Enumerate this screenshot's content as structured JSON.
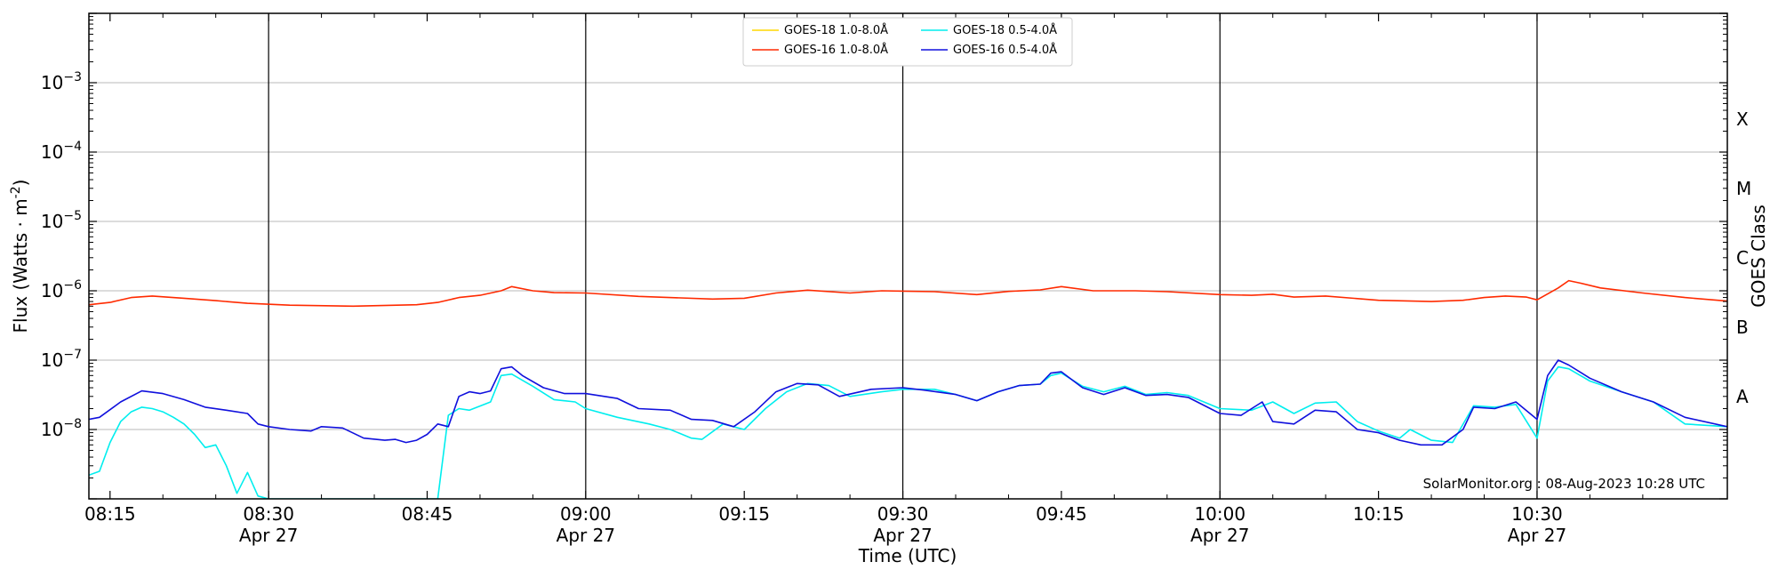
{
  "chart_data": {
    "type": "line",
    "ylabel": "Flux (Watts · m",
    "ylabel_sup": "-2",
    "ylabel_end": ")",
    "xlabel": "Time (UTC)",
    "right_label": "GOES Class",
    "credit": "SolarMonitor.org : 08-Aug-2023 10:28 UTC",
    "y_scale": "log",
    "ylim": [
      1e-09,
      0.01
    ],
    "xlim": [
      "08:13",
      "10:48"
    ],
    "grid": "horizontal",
    "legend_position": "top-center",
    "y_ticks": [
      {
        "value": 1e-08,
        "base": "10",
        "exp": "−8"
      },
      {
        "value": 1e-07,
        "base": "10",
        "exp": "−7"
      },
      {
        "value": 1e-06,
        "base": "10",
        "exp": "−6"
      },
      {
        "value": 1e-05,
        "base": "10",
        "exp": "−5"
      },
      {
        "value": 0.0001,
        "base": "10",
        "exp": "−4"
      },
      {
        "value": 0.001,
        "base": "10",
        "exp": "−3"
      }
    ],
    "x_ticks": [
      {
        "time": "08:15",
        "label": "08:15",
        "sub": ""
      },
      {
        "time": "08:30",
        "label": "08:30",
        "sub": "Apr 27"
      },
      {
        "time": "08:45",
        "label": "08:45",
        "sub": ""
      },
      {
        "time": "09:00",
        "label": "09:00",
        "sub": "Apr 27"
      },
      {
        "time": "09:15",
        "label": "09:15",
        "sub": ""
      },
      {
        "time": "09:30",
        "label": "09:30",
        "sub": "Apr 27"
      },
      {
        "time": "09:45",
        "label": "09:45",
        "sub": ""
      },
      {
        "time": "10:00",
        "label": "10:00",
        "sub": "Apr 27"
      },
      {
        "time": "10:15",
        "label": "10:15",
        "sub": ""
      },
      {
        "time": "10:30",
        "label": "10:30",
        "sub": "Apr 27"
      }
    ],
    "goes_classes": [
      {
        "label": "X",
        "value": 0.0003
      },
      {
        "label": "M",
        "value": 3e-05
      },
      {
        "label": "C",
        "value": 3e-06
      },
      {
        "label": "B",
        "value": 3e-07
      },
      {
        "label": "A",
        "value": 3e-08
      }
    ],
    "series": [
      {
        "name": "GOES-18 1.0-8.0Å",
        "color": "#ffd700",
        "points": []
      },
      {
        "name": "GOES-16 1.0-8.0Å",
        "color": "#ff2a00",
        "points": [
          [
            "08:13",
            6.3e-07
          ],
          [
            "08:15",
            6.8e-07
          ],
          [
            "08:17",
            8e-07
          ],
          [
            "08:19",
            8.4e-07
          ],
          [
            "08:22",
            7.8e-07
          ],
          [
            "08:25",
            7.2e-07
          ],
          [
            "08:28",
            6.6e-07
          ],
          [
            "08:32",
            6.2e-07
          ],
          [
            "08:38",
            6e-07
          ],
          [
            "08:44",
            6.3e-07
          ],
          [
            "08:46",
            6.8e-07
          ],
          [
            "08:48",
            8e-07
          ],
          [
            "08:50",
            8.6e-07
          ],
          [
            "08:52",
            1e-06
          ],
          [
            "08:53",
            1.15e-06
          ],
          [
            "08:55",
            1e-06
          ],
          [
            "08:57",
            9.4e-07
          ],
          [
            "09:00",
            9.3e-07
          ],
          [
            "09:05",
            8.3e-07
          ],
          [
            "09:12",
            7.6e-07
          ],
          [
            "09:15",
            7.8e-07
          ],
          [
            "09:18",
            9.3e-07
          ],
          [
            "09:21",
            1.02e-06
          ],
          [
            "09:25",
            9.3e-07
          ],
          [
            "09:28",
            1e-06
          ],
          [
            "09:33",
            9.7e-07
          ],
          [
            "09:37",
            8.8e-07
          ],
          [
            "09:40",
            9.8e-07
          ],
          [
            "09:43",
            1.03e-06
          ],
          [
            "09:45",
            1.15e-06
          ],
          [
            "09:48",
            1e-06
          ],
          [
            "09:52",
            1e-06
          ],
          [
            "09:55",
            9.7e-07
          ],
          [
            "10:00",
            8.8e-07
          ],
          [
            "10:03",
            8.6e-07
          ],
          [
            "10:05",
            8.9e-07
          ],
          [
            "10:07",
            8.1e-07
          ],
          [
            "10:10",
            8.4e-07
          ],
          [
            "10:15",
            7.3e-07
          ],
          [
            "10:20",
            7e-07
          ],
          [
            "10:23",
            7.3e-07
          ],
          [
            "10:25",
            8e-07
          ],
          [
            "10:27",
            8.4e-07
          ],
          [
            "10:29",
            8.1e-07
          ],
          [
            "10:30",
            7.4e-07
          ],
          [
            "10:32",
            1.1e-06
          ],
          [
            "10:33",
            1.4e-06
          ],
          [
            "10:34",
            1.3e-06
          ],
          [
            "10:36",
            1.1e-06
          ],
          [
            "10:40",
            9.3e-07
          ],
          [
            "10:44",
            8e-07
          ],
          [
            "10:48",
            7.1e-07
          ]
        ]
      },
      {
        "name": "GOES-18 0.5-4.0Å",
        "color": "#00eeee",
        "points": [
          [
            "08:13",
            2.2e-09
          ],
          [
            "08:14",
            2.5e-09
          ],
          [
            "08:15",
            6.5e-09
          ],
          [
            "08:16",
            1.3e-08
          ],
          [
            "08:17",
            1.8e-08
          ],
          [
            "08:18",
            2.1e-08
          ],
          [
            "08:19",
            2e-08
          ],
          [
            "08:20",
            1.8e-08
          ],
          [
            "08:21",
            1.5e-08
          ],
          [
            "08:22",
            1.2e-08
          ],
          [
            "08:23",
            8.5e-09
          ],
          [
            "08:24",
            5.5e-09
          ],
          [
            "08:25",
            6e-09
          ],
          [
            "08:26",
            3e-09
          ],
          [
            "08:27",
            1.2e-09
          ],
          [
            "08:28",
            2.4e-09
          ],
          [
            "08:29",
            1.1e-09
          ],
          [
            "08:30",
            1e-09
          ],
          [
            "08:46",
            1e-09
          ],
          [
            "08:47",
            1.6e-08
          ],
          [
            "08:48",
            2e-08
          ],
          [
            "08:49",
            1.9e-08
          ],
          [
            "08:51",
            2.5e-08
          ],
          [
            "08:52",
            6e-08
          ],
          [
            "08:53",
            6.3e-08
          ],
          [
            "08:55",
            4.2e-08
          ],
          [
            "08:57",
            2.7e-08
          ],
          [
            "08:59",
            2.5e-08
          ],
          [
            "09:00",
            2e-08
          ],
          [
            "09:03",
            1.5e-08
          ],
          [
            "09:06",
            1.2e-08
          ],
          [
            "09:08",
            1e-08
          ],
          [
            "09:10",
            7.5e-09
          ],
          [
            "09:11",
            7.2e-09
          ],
          [
            "09:13",
            1.2e-08
          ],
          [
            "09:15",
            1e-08
          ],
          [
            "09:17",
            2e-08
          ],
          [
            "09:19",
            3.5e-08
          ],
          [
            "09:21",
            4.6e-08
          ],
          [
            "09:23",
            4.3e-08
          ],
          [
            "09:25",
            3e-08
          ],
          [
            "09:28",
            3.5e-08
          ],
          [
            "09:30",
            3.8e-08
          ],
          [
            "09:33",
            3.8e-08
          ],
          [
            "09:35",
            3.2e-08
          ],
          [
            "09:37",
            2.6e-08
          ],
          [
            "09:39",
            3.5e-08
          ],
          [
            "09:41",
            4.3e-08
          ],
          [
            "09:43",
            4.5e-08
          ],
          [
            "09:44",
            6e-08
          ],
          [
            "09:45",
            6.5e-08
          ],
          [
            "09:47",
            4.2e-08
          ],
          [
            "09:49",
            3.5e-08
          ],
          [
            "09:51",
            4.2e-08
          ],
          [
            "09:53",
            3.2e-08
          ],
          [
            "09:55",
            3.4e-08
          ],
          [
            "09:57",
            3.1e-08
          ],
          [
            "10:00",
            2e-08
          ],
          [
            "10:03",
            1.9e-08
          ],
          [
            "10:05",
            2.5e-08
          ],
          [
            "10:07",
            1.7e-08
          ],
          [
            "10:09",
            2.4e-08
          ],
          [
            "10:11",
            2.5e-08
          ],
          [
            "10:13",
            1.3e-08
          ],
          [
            "10:15",
            9.5e-09
          ],
          [
            "10:17",
            7.5e-09
          ],
          [
            "10:18",
            1e-08
          ],
          [
            "10:20",
            7e-09
          ],
          [
            "10:22",
            6.5e-09
          ],
          [
            "10:24",
            2.2e-08
          ],
          [
            "10:26",
            2.1e-08
          ],
          [
            "10:28",
            2.3e-08
          ],
          [
            "10:30",
            7.5e-09
          ],
          [
            "10:31",
            5e-08
          ],
          [
            "10:32",
            8e-08
          ],
          [
            "10:33",
            7.5e-08
          ],
          [
            "10:35",
            5e-08
          ],
          [
            "10:38",
            3.5e-08
          ],
          [
            "10:41",
            2.5e-08
          ],
          [
            "10:44",
            1.2e-08
          ],
          [
            "10:48",
            1.1e-08
          ]
        ]
      },
      {
        "name": "GOES-16 0.5-4.0Å",
        "color": "#1010dd",
        "points": [
          [
            "08:13",
            1.4e-08
          ],
          [
            "08:14",
            1.5e-08
          ],
          [
            "08:16",
            2.5e-08
          ],
          [
            "08:18",
            3.6e-08
          ],
          [
            "08:20",
            3.3e-08
          ],
          [
            "08:22",
            2.7e-08
          ],
          [
            "08:24",
            2.1e-08
          ],
          [
            "08:26",
            1.9e-08
          ],
          [
            "08:28",
            1.7e-08
          ],
          [
            "08:29",
            1.2e-08
          ],
          [
            "08:30",
            1.1e-08
          ],
          [
            "08:32",
            1e-08
          ],
          [
            "08:34",
            9.5e-09
          ],
          [
            "08:35",
            1.1e-08
          ],
          [
            "08:37",
            1.05e-08
          ],
          [
            "08:39",
            7.5e-09
          ],
          [
            "08:41",
            7e-09
          ],
          [
            "08:42",
            7.2e-09
          ],
          [
            "08:43",
            6.5e-09
          ],
          [
            "08:44",
            7e-09
          ],
          [
            "08:45",
            8.5e-09
          ],
          [
            "08:46",
            1.2e-08
          ],
          [
            "08:47",
            1.1e-08
          ],
          [
            "08:48",
            3e-08
          ],
          [
            "08:49",
            3.5e-08
          ],
          [
            "08:50",
            3.3e-08
          ],
          [
            "08:51",
            3.6e-08
          ],
          [
            "08:52",
            7.5e-08
          ],
          [
            "08:53",
            8e-08
          ],
          [
            "08:54",
            6e-08
          ],
          [
            "08:56",
            4e-08
          ],
          [
            "08:58",
            3.3e-08
          ],
          [
            "09:00",
            3.3e-08
          ],
          [
            "09:03",
            2.8e-08
          ],
          [
            "09:05",
            2e-08
          ],
          [
            "09:08",
            1.9e-08
          ],
          [
            "09:10",
            1.4e-08
          ],
          [
            "09:12",
            1.35e-08
          ],
          [
            "09:14",
            1.1e-08
          ],
          [
            "09:16",
            1.8e-08
          ],
          [
            "09:18",
            3.5e-08
          ],
          [
            "09:20",
            4.6e-08
          ],
          [
            "09:22",
            4.4e-08
          ],
          [
            "09:24",
            3e-08
          ],
          [
            "09:27",
            3.8e-08
          ],
          [
            "09:30",
            4e-08
          ],
          [
            "09:32",
            3.7e-08
          ],
          [
            "09:35",
            3.2e-08
          ],
          [
            "09:37",
            2.6e-08
          ],
          [
            "09:39",
            3.5e-08
          ],
          [
            "09:41",
            4.3e-08
          ],
          [
            "09:43",
            4.5e-08
          ],
          [
            "09:44",
            6.5e-08
          ],
          [
            "09:45",
            6.8e-08
          ],
          [
            "09:47",
            4e-08
          ],
          [
            "09:49",
            3.2e-08
          ],
          [
            "09:51",
            4e-08
          ],
          [
            "09:53",
            3.1e-08
          ],
          [
            "09:55",
            3.2e-08
          ],
          [
            "09:57",
            2.9e-08
          ],
          [
            "10:00",
            1.7e-08
          ],
          [
            "10:02",
            1.6e-08
          ],
          [
            "10:04",
            2.5e-08
          ],
          [
            "10:05",
            1.3e-08
          ],
          [
            "10:07",
            1.2e-08
          ],
          [
            "10:09",
            1.9e-08
          ],
          [
            "10:11",
            1.8e-08
          ],
          [
            "10:13",
            1e-08
          ],
          [
            "10:15",
            9e-09
          ],
          [
            "10:17",
            7e-09
          ],
          [
            "10:19",
            6e-09
          ],
          [
            "10:21",
            6e-09
          ],
          [
            "10:23",
            1e-08
          ],
          [
            "10:24",
            2.1e-08
          ],
          [
            "10:26",
            2e-08
          ],
          [
            "10:28",
            2.5e-08
          ],
          [
            "10:30",
            1.4e-08
          ],
          [
            "10:31",
            6e-08
          ],
          [
            "10:32",
            1e-07
          ],
          [
            "10:33",
            8.5e-08
          ],
          [
            "10:35",
            5.5e-08
          ],
          [
            "10:38",
            3.5e-08
          ],
          [
            "10:41",
            2.5e-08
          ],
          [
            "10:44",
            1.5e-08
          ],
          [
            "10:48",
            1.1e-08
          ]
        ]
      }
    ]
  }
}
